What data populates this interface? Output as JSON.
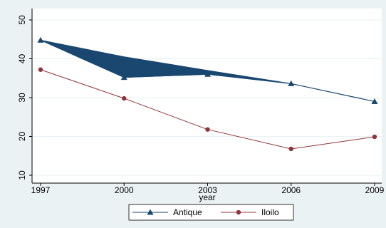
{
  "chart_data": {
    "type": "line",
    "title": "",
    "xlabel": "year",
    "ylabel": "",
    "x": [
      1997,
      2000,
      2003,
      2006,
      2009
    ],
    "xticks": [
      "1997",
      "2000",
      "2003",
      "2006",
      "2009"
    ],
    "yticks": [
      "10",
      "20",
      "30",
      "40",
      "50"
    ],
    "xlim": [
      1997,
      2009
    ],
    "ylim": [
      10,
      50
    ],
    "grid": "horizontal",
    "legend_position": "bottom",
    "series": [
      {
        "name": "Antique",
        "values": [
          44.8,
          35.2,
          36.0,
          33.6,
          29.0
        ],
        "upper": [
          44.8,
          40.5,
          37.0,
          33.6,
          29.0
        ],
        "color": "#1a476f",
        "marker": "triangle"
      },
      {
        "name": "Iloilo",
        "values": [
          37.2,
          29.8,
          21.8,
          16.8,
          19.9
        ],
        "color": "#90353b",
        "marker": "circle"
      }
    ]
  }
}
